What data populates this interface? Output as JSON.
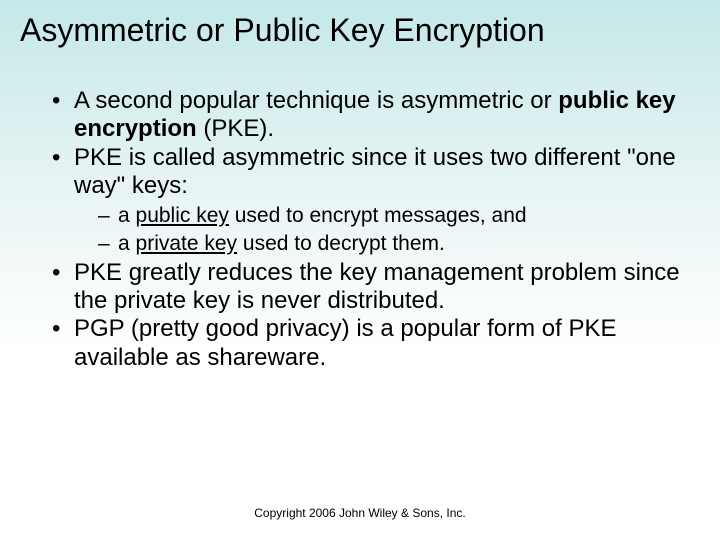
{
  "title": "Asymmetric or Public Key Encryption",
  "bullets": {
    "b1_pre": "A second popular technique is asymmetric or ",
    "b1_bold": "public key encryption",
    "b1_post": " (PKE).",
    "b2": "PKE is called asymmetric since it uses two different \"one way\" keys:",
    "s1_pre": "a ",
    "s1_u": "public key",
    "s1_post": " used to encrypt messages, and",
    "s2_pre": "a ",
    "s2_u": "private key",
    "s2_post": " used to decrypt them.",
    "b3": "PKE greatly reduces the key management problem since the private key is never distributed.",
    "b4": "PGP (pretty good privacy) is a popular form of PKE available as shareware."
  },
  "footer": "Copyright 2006 John Wiley & Sons, Inc."
}
